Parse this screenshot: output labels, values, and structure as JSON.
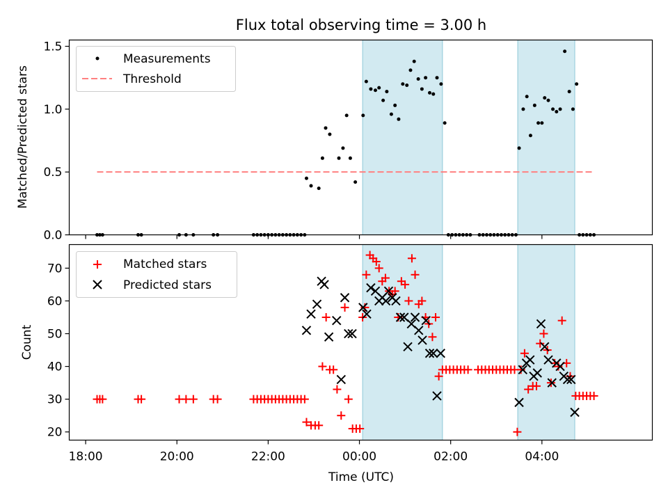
{
  "figure": {
    "title": "Flux total observing time = 3.00 h",
    "xlabel": "Time (UTC)",
    "x_ticks": [
      "18:00",
      "20:00",
      "22:00",
      "00:00",
      "02:00",
      "04:00"
    ],
    "x_tick_hours": [
      18,
      20,
      22,
      24,
      26,
      28
    ],
    "x_range_hours": [
      17.64,
      30.42
    ],
    "shaded_intervals_hours": [
      [
        24.07,
        25.82
      ],
      [
        27.47,
        28.72
      ]
    ],
    "shade_color": "#add8e6"
  },
  "chart_data": [
    {
      "type": "scatter",
      "ylabel": "Matched/Predicted stars",
      "ylim": [
        0,
        1.55
      ],
      "y_ticks": [
        "0.0",
        "0.5",
        "1.0",
        "1.5"
      ],
      "y_tick_values": [
        0,
        0.5,
        1.0,
        1.5
      ],
      "legend_position": "top-left",
      "series": [
        {
          "name": "Measurements",
          "marker": "dot",
          "color": "#000000",
          "points": [
            [
              18.25,
              0
            ],
            [
              18.31,
              0
            ],
            [
              18.37,
              0
            ],
            [
              19.15,
              0
            ],
            [
              19.22,
              0
            ],
            [
              20.05,
              0
            ],
            [
              20.2,
              0
            ],
            [
              20.36,
              0
            ],
            [
              20.8,
              0
            ],
            [
              20.89,
              0
            ],
            [
              21.68,
              0
            ],
            [
              21.76,
              0
            ],
            [
              21.84,
              0
            ],
            [
              21.92,
              0
            ],
            [
              22.0,
              0
            ],
            [
              22.08,
              0
            ],
            [
              22.16,
              0
            ],
            [
              22.24,
              0
            ],
            [
              22.32,
              0
            ],
            [
              22.4,
              0
            ],
            [
              22.48,
              0
            ],
            [
              22.56,
              0
            ],
            [
              22.64,
              0
            ],
            [
              22.72,
              0
            ],
            [
              22.8,
              0
            ],
            [
              22.84,
              0.45
            ],
            [
              22.94,
              0.39
            ],
            [
              23.11,
              0.37
            ],
            [
              23.19,
              0.61
            ],
            [
              23.26,
              0.85
            ],
            [
              23.35,
              0.8
            ],
            [
              23.55,
              0.61
            ],
            [
              23.64,
              0.69
            ],
            [
              23.72,
              0.95
            ],
            [
              23.8,
              0.61
            ],
            [
              23.91,
              0.42
            ],
            [
              24.08,
              0.95
            ],
            [
              24.15,
              1.22
            ],
            [
              24.25,
              1.16
            ],
            [
              24.35,
              1.15
            ],
            [
              24.43,
              1.17
            ],
            [
              24.52,
              1.07
            ],
            [
              24.6,
              1.14
            ],
            [
              24.7,
              0.96
            ],
            [
              24.78,
              1.03
            ],
            [
              24.86,
              0.92
            ],
            [
              24.95,
              1.2
            ],
            [
              25.04,
              1.19
            ],
            [
              25.12,
              1.31
            ],
            [
              25.2,
              1.38
            ],
            [
              25.29,
              1.24
            ],
            [
              25.37,
              1.16
            ],
            [
              25.45,
              1.25
            ],
            [
              25.54,
              1.13
            ],
            [
              25.62,
              1.12
            ],
            [
              25.7,
              1.25
            ],
            [
              25.79,
              1.2
            ],
            [
              25.87,
              0.89
            ],
            [
              25.95,
              0
            ],
            [
              26.03,
              0
            ],
            [
              26.11,
              0
            ],
            [
              26.19,
              0
            ],
            [
              26.27,
              0
            ],
            [
              26.35,
              0
            ],
            [
              26.43,
              0
            ],
            [
              26.63,
              0
            ],
            [
              26.71,
              0
            ],
            [
              26.79,
              0
            ],
            [
              26.87,
              0
            ],
            [
              26.95,
              0
            ],
            [
              27.03,
              0
            ],
            [
              27.11,
              0
            ],
            [
              27.19,
              0
            ],
            [
              27.27,
              0
            ],
            [
              27.35,
              0
            ],
            [
              27.43,
              0
            ],
            [
              27.5,
              0.69
            ],
            [
              27.59,
              1.0
            ],
            [
              27.67,
              1.1
            ],
            [
              27.75,
              0.79
            ],
            [
              27.84,
              1.03
            ],
            [
              27.92,
              0.89
            ],
            [
              28.0,
              0.89
            ],
            [
              28.06,
              1.09
            ],
            [
              28.14,
              1.07
            ],
            [
              28.24,
              1.0
            ],
            [
              28.32,
              0.98
            ],
            [
              28.4,
              1.0
            ],
            [
              28.5,
              1.46
            ],
            [
              28.6,
              1.14
            ],
            [
              28.68,
              1.0
            ],
            [
              28.76,
              1.2
            ],
            [
              28.82,
              0
            ],
            [
              28.9,
              0
            ],
            [
              28.98,
              0
            ],
            [
              29.06,
              0
            ],
            [
              29.14,
              0
            ]
          ]
        },
        {
          "name": "Threshold",
          "marker": "dashed-line",
          "color": "#ff8080",
          "points": [
            [
              18.25,
              0.5
            ],
            [
              29.14,
              0.5
            ]
          ]
        }
      ]
    },
    {
      "type": "scatter",
      "ylabel": "Count",
      "ylim": [
        17.5,
        77.2
      ],
      "y_ticks": [
        "20",
        "30",
        "40",
        "50",
        "60",
        "70"
      ],
      "y_tick_values": [
        20,
        30,
        40,
        50,
        60,
        70
      ],
      "legend_position": "top-left",
      "series": [
        {
          "name": "Matched stars",
          "marker": "plus",
          "color": "#ff0000",
          "points": [
            [
              18.25,
              30
            ],
            [
              18.31,
              30
            ],
            [
              18.37,
              30
            ],
            [
              19.15,
              30
            ],
            [
              19.22,
              30
            ],
            [
              20.05,
              30
            ],
            [
              20.2,
              30
            ],
            [
              20.36,
              30
            ],
            [
              20.8,
              30
            ],
            [
              20.89,
              30
            ],
            [
              21.68,
              30
            ],
            [
              21.76,
              30
            ],
            [
              21.84,
              30
            ],
            [
              21.92,
              30
            ],
            [
              22.0,
              30
            ],
            [
              22.08,
              30
            ],
            [
              22.16,
              30
            ],
            [
              22.24,
              30
            ],
            [
              22.32,
              30
            ],
            [
              22.4,
              30
            ],
            [
              22.48,
              30
            ],
            [
              22.56,
              30
            ],
            [
              22.64,
              30
            ],
            [
              22.72,
              30
            ],
            [
              22.8,
              30
            ],
            [
              22.84,
              23
            ],
            [
              22.94,
              22
            ],
            [
              23.03,
              22
            ],
            [
              23.11,
              22
            ],
            [
              23.19,
              40
            ],
            [
              23.27,
              55
            ],
            [
              23.35,
              39
            ],
            [
              23.43,
              39
            ],
            [
              23.51,
              33
            ],
            [
              23.6,
              25
            ],
            [
              23.68,
              58
            ],
            [
              23.76,
              30
            ],
            [
              23.85,
              21
            ],
            [
              23.93,
              21
            ],
            [
              24.01,
              21
            ],
            [
              24.07,
              55
            ],
            [
              24.12,
              58
            ],
            [
              24.15,
              68
            ],
            [
              24.23,
              74
            ],
            [
              24.3,
              73
            ],
            [
              24.37,
              72
            ],
            [
              24.43,
              70
            ],
            [
              24.5,
              66
            ],
            [
              24.57,
              67
            ],
            [
              24.65,
              63
            ],
            [
              24.72,
              62
            ],
            [
              24.78,
              63
            ],
            [
              24.85,
              55
            ],
            [
              24.92,
              66
            ],
            [
              25.0,
              65
            ],
            [
              25.08,
              60
            ],
            [
              25.15,
              73
            ],
            [
              25.22,
              68
            ],
            [
              25.3,
              59
            ],
            [
              25.37,
              60
            ],
            [
              25.45,
              55
            ],
            [
              25.52,
              53
            ],
            [
              25.6,
              49
            ],
            [
              25.67,
              55
            ],
            [
              25.74,
              37
            ],
            [
              25.82,
              39
            ],
            [
              25.9,
              39
            ],
            [
              25.98,
              39
            ],
            [
              26.06,
              39
            ],
            [
              26.14,
              39
            ],
            [
              26.22,
              39
            ],
            [
              26.3,
              39
            ],
            [
              26.38,
              39
            ],
            [
              26.6,
              39
            ],
            [
              26.68,
              39
            ],
            [
              26.76,
              39
            ],
            [
              26.84,
              39
            ],
            [
              26.92,
              39
            ],
            [
              27.0,
              39
            ],
            [
              27.08,
              39
            ],
            [
              27.16,
              39
            ],
            [
              27.24,
              39
            ],
            [
              27.32,
              39
            ],
            [
              27.4,
              39
            ],
            [
              27.46,
              20
            ],
            [
              27.54,
              39
            ],
            [
              27.62,
              44
            ],
            [
              27.7,
              33
            ],
            [
              27.8,
              34
            ],
            [
              27.88,
              34
            ],
            [
              27.96,
              47
            ],
            [
              28.04,
              50
            ],
            [
              28.12,
              45
            ],
            [
              28.2,
              35
            ],
            [
              28.28,
              41
            ],
            [
              28.36,
              40
            ],
            [
              28.44,
              54
            ],
            [
              28.54,
              41
            ],
            [
              28.62,
              37
            ],
            [
              28.74,
              31
            ],
            [
              28.82,
              31
            ],
            [
              28.9,
              31
            ],
            [
              28.98,
              31
            ],
            [
              29.06,
              31
            ],
            [
              29.14,
              31
            ]
          ]
        },
        {
          "name": "Predicted stars",
          "marker": "x",
          "color": "#000000",
          "points": [
            [
              22.84,
              51
            ],
            [
              22.94,
              56
            ],
            [
              23.07,
              59
            ],
            [
              23.17,
              66
            ],
            [
              23.23,
              65
            ],
            [
              23.33,
              49
            ],
            [
              23.5,
              54
            ],
            [
              23.6,
              36
            ],
            [
              23.68,
              61
            ],
            [
              23.76,
              50
            ],
            [
              23.84,
              50
            ],
            [
              24.08,
              58
            ],
            [
              24.16,
              56
            ],
            [
              24.25,
              64
            ],
            [
              24.35,
              63
            ],
            [
              24.43,
              60
            ],
            [
              24.5,
              61
            ],
            [
              24.58,
              60
            ],
            [
              24.64,
              63
            ],
            [
              24.72,
              61
            ],
            [
              24.8,
              60
            ],
            [
              24.9,
              55
            ],
            [
              24.98,
              55
            ],
            [
              25.06,
              46
            ],
            [
              25.14,
              53
            ],
            [
              25.22,
              55
            ],
            [
              25.3,
              51
            ],
            [
              25.38,
              48
            ],
            [
              25.46,
              54
            ],
            [
              25.54,
              44
            ],
            [
              25.62,
              44
            ],
            [
              25.7,
              31
            ],
            [
              25.78,
              44
            ],
            [
              27.5,
              29
            ],
            [
              27.58,
              39
            ],
            [
              27.66,
              41
            ],
            [
              27.74,
              42
            ],
            [
              27.82,
              37
            ],
            [
              27.9,
              38
            ],
            [
              27.98,
              53
            ],
            [
              28.06,
              46
            ],
            [
              28.14,
              42
            ],
            [
              28.22,
              35
            ],
            [
              28.32,
              41
            ],
            [
              28.4,
              40
            ],
            [
              28.48,
              37
            ],
            [
              28.56,
              36
            ],
            [
              28.64,
              36
            ],
            [
              28.72,
              26
            ]
          ]
        }
      ]
    }
  ]
}
